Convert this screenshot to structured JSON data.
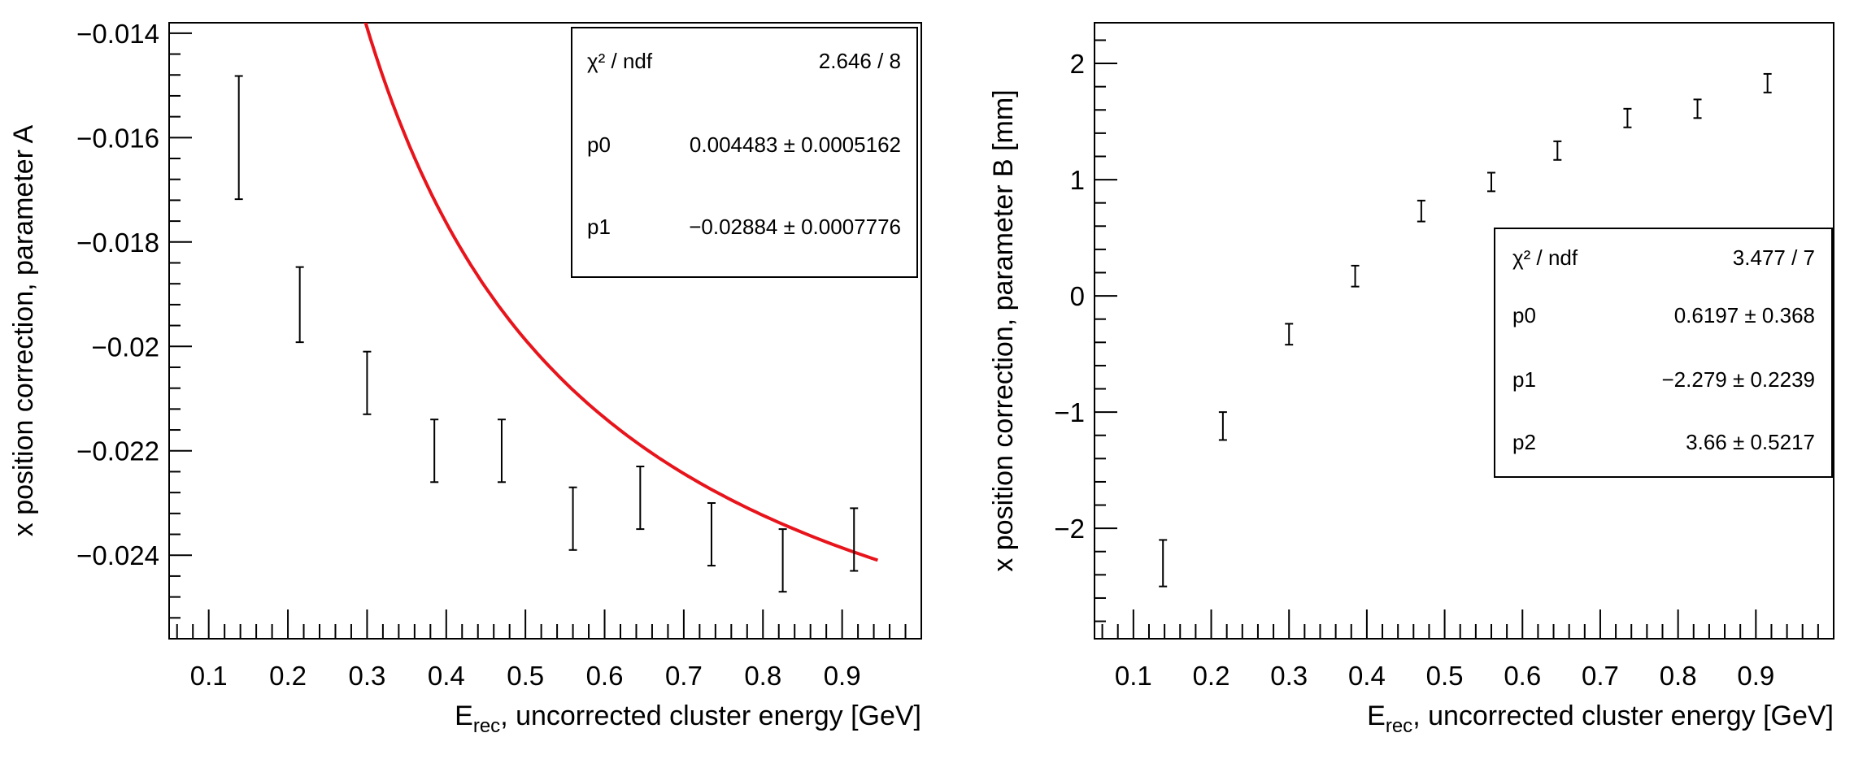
{
  "chart_data": [
    {
      "type": "scatter",
      "title": "",
      "xlabel": {
        "main": "E",
        "sub": "rec",
        "rest": ", uncorrected cluster energy [GeV]"
      },
      "ylabel": "x position correction, parameter A",
      "xlim": [
        0.05,
        1.0
      ],
      "ylim": [
        -0.0256,
        -0.0138
      ],
      "xticks": [
        "0.1",
        "0.2",
        "0.3",
        "0.4",
        "0.5",
        "0.6",
        "0.7",
        "0.8",
        "0.9"
      ],
      "yticks": [
        "−0.014",
        "−0.016",
        "−0.018",
        "−0.02",
        "−0.022",
        "−0.024"
      ],
      "series": [
        {
          "x": [
            0.138,
            0.215,
            0.3,
            0.385,
            0.47,
            0.56,
            0.645,
            0.735,
            0.825,
            0.915
          ],
          "y": [
            -0.016,
            -0.0192,
            -0.0207,
            -0.022,
            -0.022,
            -0.0233,
            -0.0229,
            -0.0236,
            -0.0241,
            -0.0237
          ],
          "yerr": [
            0.00118,
            0.00072,
            0.0006,
            0.0006,
            0.0006,
            0.0006,
            0.0006,
            0.0006,
            0.0006,
            0.0006
          ]
        }
      ],
      "fit": {
        "model": "p0/x + p1",
        "p": [
          0.004483,
          -0.02884
        ],
        "range": [
          0.1,
          0.945
        ],
        "color": "#e8141c"
      },
      "stats": [
        {
          "name": "χ² / ndf",
          "value": "2.646 / 8"
        },
        {
          "name": "p0",
          "value": "0.004483 ± 0.0005162"
        },
        {
          "name": "p1",
          "value": "−0.02884 ± 0.0007776"
        }
      ]
    },
    {
      "type": "scatter",
      "title": "",
      "xlabel": {
        "main": "E",
        "sub": "rec",
        "rest": ", uncorrected cluster energy [GeV]"
      },
      "ylabel": "x position correction, parameter B [mm]",
      "xlim": [
        0.05,
        1.0
      ],
      "ylim": [
        -2.95,
        2.35
      ],
      "xticks": [
        "0.1",
        "0.2",
        "0.3",
        "0.4",
        "0.5",
        "0.6",
        "0.7",
        "0.8",
        "0.9"
      ],
      "yticks": [
        "2",
        "1",
        "0",
        "−1",
        "−2"
      ],
      "series": [
        {
          "x": [
            0.138,
            0.215,
            0.3,
            0.385,
            0.47,
            0.56,
            0.645,
            0.735,
            0.825,
            0.915
          ],
          "y": [
            -2.3,
            -1.12,
            -0.33,
            0.17,
            0.73,
            0.98,
            1.25,
            1.53,
            1.61,
            1.83
          ],
          "yerr": [
            0.2,
            0.12,
            0.09,
            0.09,
            0.09,
            0.08,
            0.08,
            0.08,
            0.08,
            0.08
          ]
        }
      ],
      "fit": {
        "model": "p0 + p1*ln(x) + p2*x",
        "p": [
          0.6197,
          -2.279,
          3.66
        ],
        "range": [
          0.113,
          0.945
        ],
        "color": "#e8141c"
      },
      "stats": [
        {
          "name": "χ² / ndf",
          "value": "3.477 / 7"
        },
        {
          "name": "p0",
          "value": "0.6197 ± 0.368"
        },
        {
          "name": "p1",
          "value": "−2.279 ± 0.2239"
        },
        {
          "name": "p2",
          "value": "3.66 ± 0.5217"
        }
      ]
    }
  ]
}
